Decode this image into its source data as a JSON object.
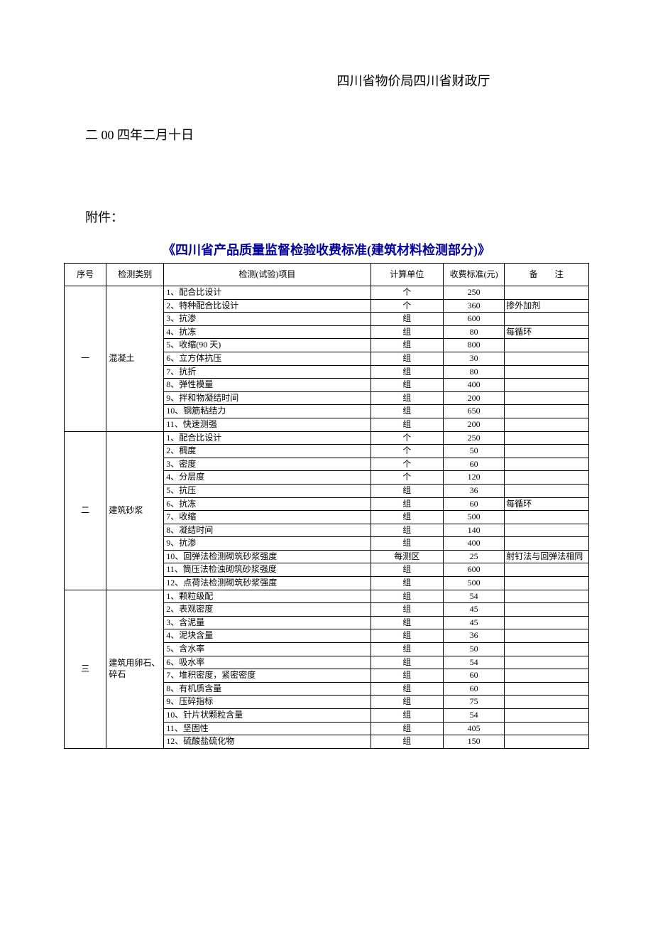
{
  "header": {
    "org": "四川省物价局四川省财政厅",
    "date": "二 00 四年二月十日",
    "attachment": "附件：",
    "title": "《四川省产品质量监督检验收费标准(建筑材料检测部分)》"
  },
  "columns": {
    "seq": "序号",
    "cat": "检测类别",
    "item": "检测(试验)项目",
    "unit": "计算单位",
    "fee": "收费标准(元)",
    "note": "备　　注"
  },
  "sections": [
    {
      "seq": "一",
      "cat": "混凝土",
      "rows": [
        {
          "item": "1、配合比设计",
          "unit": "个",
          "fee": "250",
          "note": ""
        },
        {
          "item": "2、特种配合比设计",
          "unit": "个",
          "fee": "360",
          "note": "掺外加剂"
        },
        {
          "item": "3、抗渗",
          "unit": "组",
          "fee": "600",
          "note": ""
        },
        {
          "item": "4、抗冻",
          "unit": "组",
          "fee": "80",
          "note": "每循环"
        },
        {
          "item": "5、收缩(90 天)",
          "unit": "组",
          "fee": "800",
          "note": ""
        },
        {
          "item": "6、立方体抗压",
          "unit": "组",
          "fee": "30",
          "note": ""
        },
        {
          "item": "7、抗折",
          "unit": "组",
          "fee": "80",
          "note": ""
        },
        {
          "item": "8、弹性模量",
          "unit": "组",
          "fee": "400",
          "note": ""
        },
        {
          "item": "9、拌和物凝结时间",
          "unit": "组",
          "fee": "200",
          "note": ""
        },
        {
          "item": "10、钢筋粘结力",
          "unit": "组",
          "fee": "650",
          "note": ""
        },
        {
          "item": "11、快速测强",
          "unit": "组",
          "fee": "200",
          "note": ""
        }
      ]
    },
    {
      "seq": "二",
      "cat": "建筑砂浆",
      "rows": [
        {
          "item": "1、配合比设计",
          "unit": "个",
          "fee": "250",
          "note": ""
        },
        {
          "item": "2、稠度",
          "unit": "个",
          "fee": "50",
          "note": ""
        },
        {
          "item": "3、密度",
          "unit": "个",
          "fee": "60",
          "note": ""
        },
        {
          "item": "4、分层度",
          "unit": "个",
          "fee": "120",
          "note": ""
        },
        {
          "item": "5、抗压",
          "unit": "组",
          "fee": "36",
          "note": ""
        },
        {
          "item": "6、抗冻",
          "unit": "组",
          "fee": "60",
          "note": "每循环"
        },
        {
          "item": "7、收缩",
          "unit": "组",
          "fee": "500",
          "note": ""
        },
        {
          "item": "8、凝结时间",
          "unit": "组",
          "fee": "140",
          "note": ""
        },
        {
          "item": "9、抗渗",
          "unit": "组",
          "fee": "400",
          "note": ""
        },
        {
          "item": "10、回弹法检测砌筑砂浆强度",
          "unit": "每测区",
          "fee": "25",
          "note": "射钉法与回弹法相同"
        },
        {
          "item": "11、筒压法检浊砌筑砂浆强度",
          "unit": "组",
          "fee": "600",
          "note": ""
        },
        {
          "item": "12、点荷法检测砌筑砂浆强度",
          "unit": "组",
          "fee": "500",
          "note": ""
        }
      ]
    },
    {
      "seq": "三",
      "cat": "建筑用卵石、碎石",
      "rows": [
        {
          "item": "1、颗粒级配",
          "unit": "组",
          "fee": "54",
          "note": ""
        },
        {
          "item": "2、表观密度",
          "unit": "组",
          "fee": "45",
          "note": ""
        },
        {
          "item": "3、含泥量",
          "unit": "组",
          "fee": "45",
          "note": ""
        },
        {
          "item": "4、泥块含量",
          "unit": "组",
          "fee": "36",
          "note": ""
        },
        {
          "item": "5、含水率",
          "unit": "组",
          "fee": "50",
          "note": ""
        },
        {
          "item": "6、吸水率",
          "unit": "组",
          "fee": "54",
          "note": ""
        },
        {
          "item": "7、堆积密度，紧密密度",
          "unit": "组",
          "fee": "60",
          "note": ""
        },
        {
          "item": "8、有机质含量",
          "unit": "组",
          "fee": "60",
          "note": ""
        },
        {
          "item": "9、压碎指标",
          "unit": "组",
          "fee": "75",
          "note": ""
        },
        {
          "item": "10、针片状颗粒含量",
          "unit": "组",
          "fee": "54",
          "note": ""
        },
        {
          "item": "11、坚固性",
          "unit": "组",
          "fee": "405",
          "note": ""
        },
        {
          "item": "12、硫酸盐硫化物",
          "unit": "组",
          "fee": "150",
          "note": ""
        }
      ]
    }
  ]
}
